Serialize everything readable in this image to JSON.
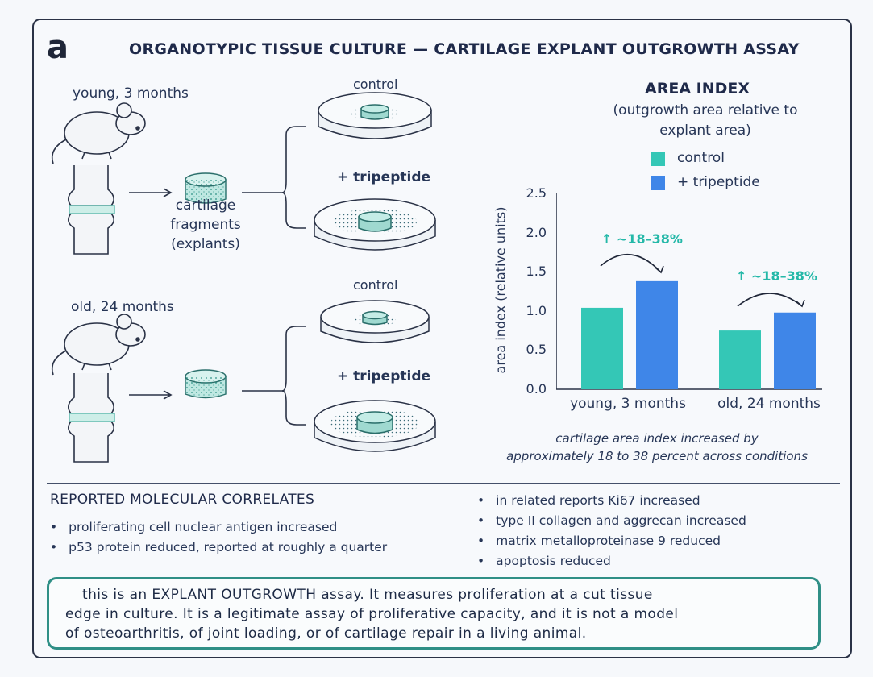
{
  "panel_letter": "a",
  "title": "ORGANOTYPIC TISSUE CULTURE — CARTILAGE EXPLANT OUTGROWTH ASSAY",
  "schematic": {
    "young_label": "young, 3 months",
    "old_label": "old, 24 months",
    "explant_label_lines": [
      "cartilage",
      "fragments",
      "(explants)"
    ],
    "dish_control": "control",
    "dish_treated": "+ tripeptide"
  },
  "colors": {
    "control": "#34c7b6",
    "treated": "#3f86e8",
    "accent": "#24b8a8",
    "box_border": "#2f8f86"
  },
  "chart_data": {
    "type": "bar",
    "title": "AREA INDEX",
    "subtitle_lines": [
      "(outgrowth area relative to",
      "explant area)"
    ],
    "ylabel": "area index (relative units)",
    "xlabel": "",
    "ylim": [
      0,
      2.5
    ],
    "yticks": [
      "2.5",
      "2.0",
      "1.5",
      "1.0",
      "0.5",
      "0.0"
    ],
    "categories": [
      "young, 3 months",
      "old, 24 months"
    ],
    "series": [
      {
        "name": "control",
        "values": [
          1.04,
          0.75
        ]
      },
      {
        "name": "+ tripeptide",
        "values": [
          1.38,
          0.98
        ]
      }
    ],
    "annotations": [
      "↑ ~18–38%",
      "↑ ~18–38%"
    ],
    "legend_position": "top",
    "caption_lines": [
      "cartilage area index increased by",
      "approximately 18 to 38 percent across conditions"
    ]
  },
  "molecular": {
    "title": "REPORTED MOLECULAR CORRELATES",
    "left": [
      "proliferating cell nuclear antigen increased",
      "p53 protein reduced, reported at roughly a quarter"
    ],
    "right": [
      "in related reports Ki67 increased",
      "type II collagen and aggrecan increased",
      "matrix metalloproteinase 9 reduced",
      "apoptosis reduced"
    ]
  },
  "note_lines": [
    "this is an EXPLANT OUTGROWTH assay. It measures proliferation at a cut tissue",
    "edge in culture. It is a legitimate assay of proliferative capacity, and it is not a model",
    "of osteoarthritis, of joint loading, or of cartilage repair in a living animal."
  ]
}
